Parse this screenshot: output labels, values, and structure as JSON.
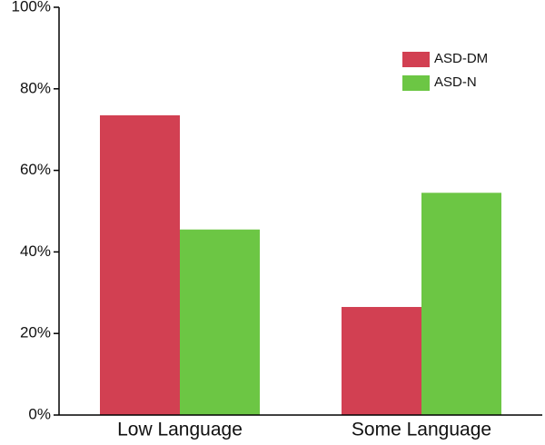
{
  "chart_data": {
    "type": "bar",
    "categories": [
      "Low Language",
      "Some Language"
    ],
    "series": [
      {
        "name": "ASD-DM",
        "color": "#d24052",
        "values": [
          73.5,
          26.5
        ]
      },
      {
        "name": "ASD-N",
        "color": "#6cc644",
        "values": [
          45.5,
          54.5
        ]
      }
    ],
    "ylim": [
      0,
      100
    ],
    "yticks": [
      {
        "value": 0,
        "label": "0%"
      },
      {
        "value": 20,
        "label": "20%"
      },
      {
        "value": 40,
        "label": "40%"
      },
      {
        "value": 60,
        "label": "60%"
      },
      {
        "value": 80,
        "label": "80%"
      },
      {
        "value": 100,
        "label": "100%"
      }
    ],
    "legend": "upper right"
  }
}
